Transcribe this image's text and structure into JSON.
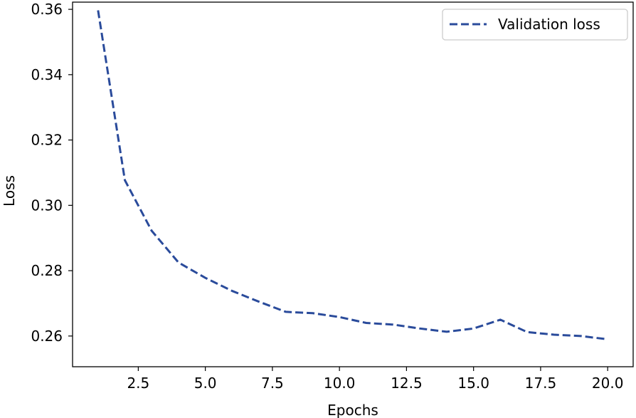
{
  "chart_data": {
    "type": "line",
    "title": "",
    "xlabel": "Epochs",
    "ylabel": "Loss",
    "xlim": [
      0.05,
      20.95
    ],
    "ylim": [
      0.2506,
      0.3622
    ],
    "xticks": [
      2.5,
      5.0,
      7.5,
      10.0,
      12.5,
      15.0,
      17.5,
      20.0
    ],
    "xtick_labels": [
      "2.5",
      "5.0",
      "7.5",
      "10.0",
      "12.5",
      "15.0",
      "17.5",
      "20.0"
    ],
    "yticks": [
      0.26,
      0.28,
      0.3,
      0.32,
      0.34,
      0.36
    ],
    "ytick_labels": [
      "0.26",
      "0.28",
      "0.30",
      "0.32",
      "0.34",
      "0.36"
    ],
    "grid": false,
    "legend_position": "top-right",
    "series": [
      {
        "name": "Validation loss",
        "color": "#2a4b9b",
        "line_style": "dashed",
        "x": [
          1,
          2,
          3,
          4,
          5,
          6,
          7,
          8,
          9,
          10,
          11,
          12,
          13,
          14,
          15,
          16,
          17,
          18,
          19,
          20
        ],
        "y": [
          0.3597,
          0.3077,
          0.2922,
          0.2825,
          0.2778,
          0.2738,
          0.2705,
          0.2674,
          0.267,
          0.2658,
          0.264,
          0.2635,
          0.2623,
          0.2613,
          0.2623,
          0.265,
          0.2612,
          0.2604,
          0.26,
          0.259
        ]
      }
    ]
  }
}
